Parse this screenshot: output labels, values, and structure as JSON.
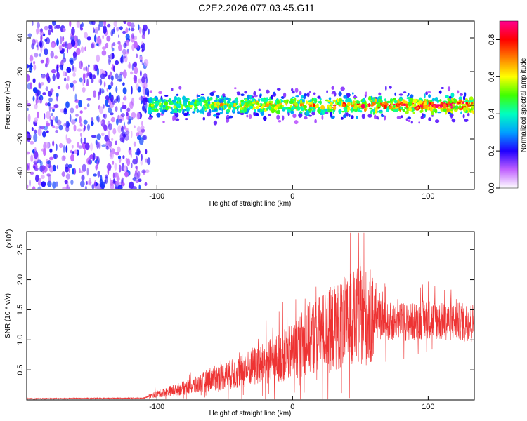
{
  "title": "C2E2.2026.077.03.45.G11",
  "chart_data": [
    {
      "type": "heatmap",
      "xlabel": "Height of straight line (km)",
      "ylabel": "Frequency (Hz)",
      "xlim": [
        -196,
        134
      ],
      "ylim": [
        -50,
        50
      ],
      "xticks": [
        -100,
        0,
        100
      ],
      "yticks": [
        -40,
        -20,
        0,
        20,
        40
      ],
      "colorbar": {
        "label": "Normalized spectral amplitude",
        "range": [
          0.0,
          0.9
        ],
        "ticks": [
          "0.0",
          "0.2",
          "0.4",
          "0.6",
          "0.8"
        ],
        "colors": [
          "#ffffff",
          "#c060ff",
          "#2000ff",
          "#00a0ff",
          "#00ffc0",
          "#40ff00",
          "#ffff00",
          "#ff8000",
          "#ff0000",
          "#ff0090"
        ]
      },
      "regions": [
        {
          "name": "broadband-noise",
          "x": [
            -196,
            -106
          ],
          "freq": [
            -50,
            50
          ],
          "amplitude": 0.15
        },
        {
          "name": "signal-band",
          "x": [
            -106,
            134
          ],
          "freq_center": 0,
          "halfwidth_hz": 8,
          "amplitude_peak": 0.85
        }
      ]
    },
    {
      "type": "line",
      "xlabel": "Height of straight line (km)",
      "ylabel": "SNR (10 * v/v)",
      "y_exponent_label": "(x10",
      "y_exponent_sup": "4",
      "y_exponent_close": ")",
      "xlim": [
        -196,
        134
      ],
      "ylim": [
        0,
        2.8
      ],
      "xticks": [
        -100,
        0,
        100
      ],
      "yticks": [
        "0.5",
        "1.0",
        "1.5",
        "2.0",
        "2.5"
      ],
      "ytick_values": [
        0.5,
        1.0,
        1.5,
        2.0,
        2.5
      ],
      "color": "#ee3333",
      "envelope": {
        "x": [
          -196,
          -110,
          -100,
          -90,
          -80,
          -70,
          -60,
          -50,
          -40,
          -30,
          -20,
          -10,
          0,
          10,
          20,
          30,
          40,
          50,
          60,
          70,
          80,
          90,
          100,
          110,
          120,
          134
        ],
        "y": [
          0.02,
          0.03,
          0.1,
          0.15,
          0.2,
          0.25,
          0.35,
          0.4,
          0.45,
          0.55,
          0.6,
          0.7,
          0.8,
          1.0,
          1.1,
          1.2,
          1.3,
          1.4,
          1.35,
          1.3,
          1.3,
          1.3,
          1.35,
          1.3,
          1.3,
          1.3
        ]
      }
    }
  ]
}
